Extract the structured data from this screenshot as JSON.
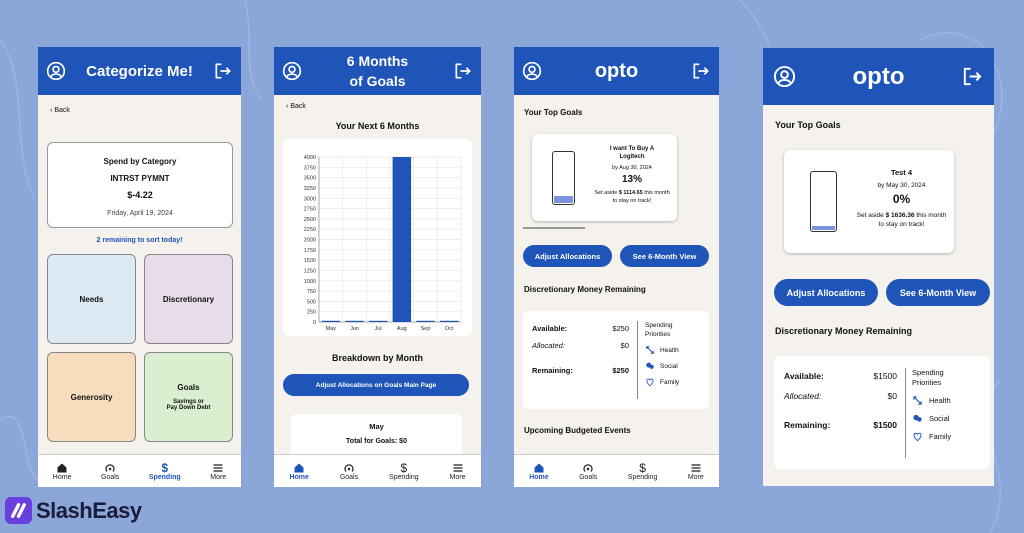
{
  "colors": {
    "background": "#8ba7d9",
    "header": "#1f55b8",
    "screen_bg": "#f5f1ec",
    "needs": "#dde9f3",
    "discretionary": "#e8dcea",
    "generosity": "#f7dcbd",
    "goals": "#d9efcf",
    "jar_fill": "#7d93df"
  },
  "logo": {
    "text": "SlashEasy"
  },
  "nav": [
    "Home",
    "Goals",
    "Spending",
    "More"
  ],
  "screen1": {
    "title": "Categorize Me!",
    "back": "Back",
    "card": {
      "heading": "Spend by Category",
      "merchant": "INTRST PYMNT",
      "amount": "$-4.22",
      "date": "Friday, April 19, 2024"
    },
    "remaining": "2 remaining to sort today!",
    "categories": {
      "needs": "Needs",
      "discretionary": "Discretionary",
      "generosity": "Generosity",
      "goals": "Goals",
      "goals_sub1": "Savings or",
      "goals_sub2": "Pay Down Debt"
    },
    "active_nav": "Spending"
  },
  "screen2": {
    "title_line1": "6 Months",
    "title_line2": "of Goals",
    "back": "Back",
    "section": "Your Next 6 Months",
    "breakdown": "Breakdown by Month",
    "button": "Adjust Allocations on Goals Main Page",
    "month_card": {
      "month": "May",
      "total": "Total for Goals: $0"
    },
    "active_nav": "Home"
  },
  "chart_data": {
    "type": "bar",
    "categories": [
      "May",
      "Jun",
      "Jul",
      "Aug",
      "Sep",
      "Oct"
    ],
    "values": [
      0,
      0,
      0,
      4000,
      0,
      0
    ],
    "ylim": [
      0,
      4000
    ],
    "yticks": [
      0,
      250,
      500,
      750,
      1000,
      1250,
      1500,
      1750,
      2000,
      2250,
      2500,
      2750,
      3000,
      3250,
      3500,
      3750,
      4000
    ],
    "grid": true,
    "title": "",
    "xlabel": "",
    "ylabel": ""
  },
  "screen3": {
    "title": "opto",
    "top_goals": "Your Top Goals",
    "goal": {
      "name_line1": "I want To Buy A",
      "name_line2": "Logitech",
      "date": "by Aug 30, 2024",
      "percent": "13%",
      "progress": 0.13,
      "set_aside_prefix": "Set aside",
      "amount": "$ 1114.65",
      "set_aside_suffix": "this month to stay on track!"
    },
    "btn_adjust": "Adjust Allocations",
    "btn_view": "See 6-Month View",
    "disc_title": "Discretionary Money Remaining",
    "available_label": "Available:",
    "available": "$250",
    "allocated_label": "Allocated:",
    "allocated": "$0",
    "remaining_label": "Remaining:",
    "remaining": "$250",
    "priorities_title": "Spending Priorities",
    "priorities": [
      "Health",
      "Social",
      "Family"
    ],
    "upcoming": "Upcoming Budgeted Events",
    "active_nav": "Home"
  },
  "screen4": {
    "title": "opto",
    "top_goals": "Your Top Goals",
    "goal": {
      "name": "Test 4",
      "date": "by May 30, 2024",
      "percent": "0%",
      "progress": 0.0,
      "set_aside_prefix": "Set aside",
      "amount": "$ 1636.36",
      "set_aside_suffix": "this month to stay on track!"
    },
    "btn_adjust": "Adjust Allocations",
    "btn_view": "See 6-Month View",
    "disc_title": "Discretionary Money Remaining",
    "available_label": "Available:",
    "available": "$1500",
    "allocated_label": "Allocated:",
    "allocated": "$0",
    "remaining_label": "Remaining:",
    "remaining": "$1500",
    "priorities_title": "Spending Priorities",
    "priorities": [
      "Health",
      "Social",
      "Family"
    ]
  }
}
